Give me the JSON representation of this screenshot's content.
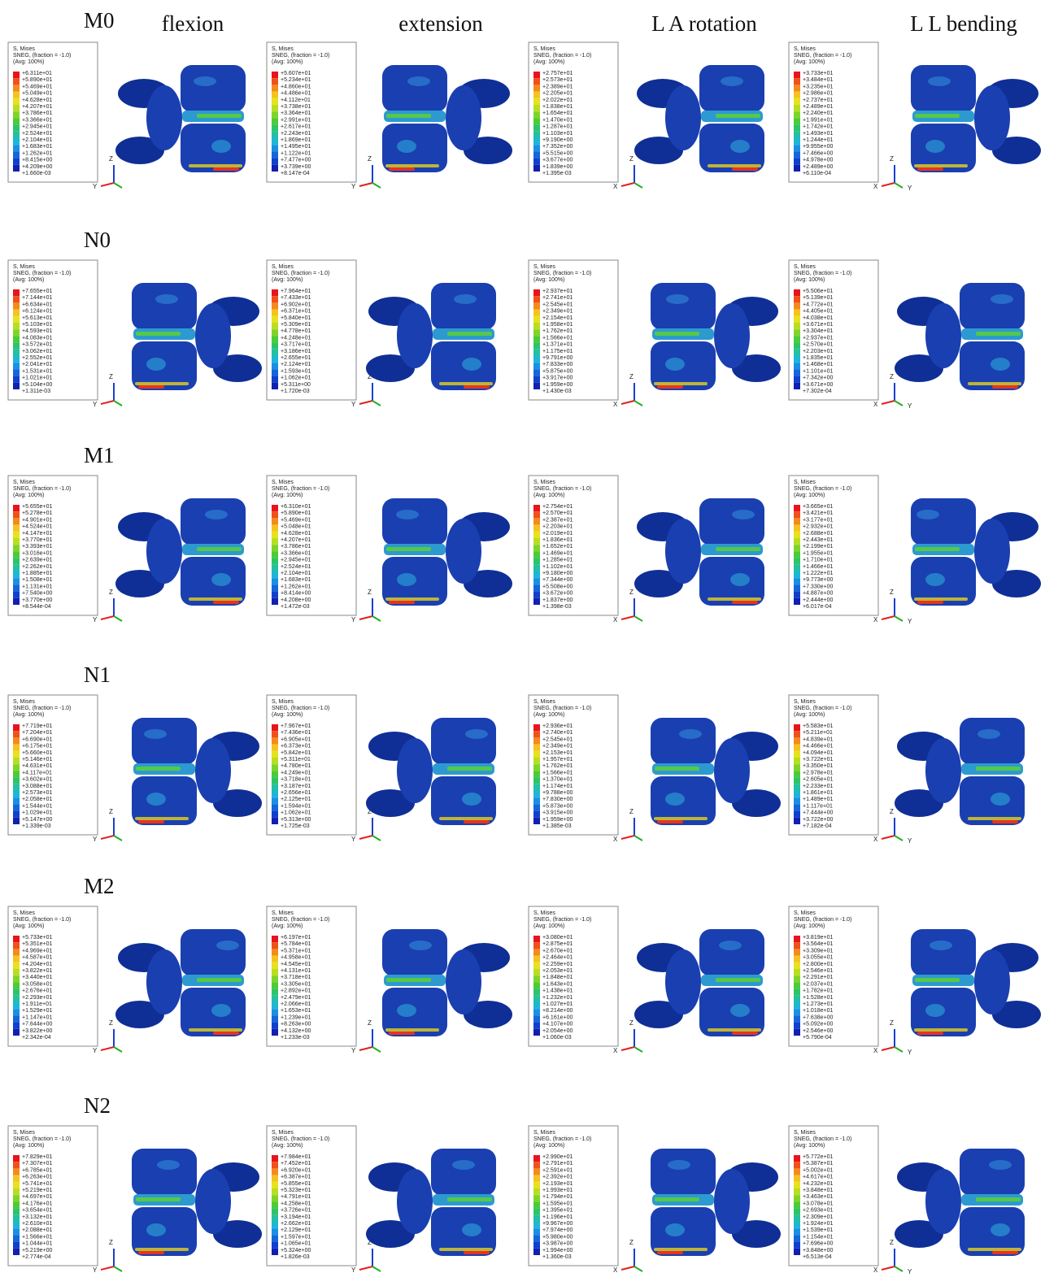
{
  "columns": [
    "flexion",
    "extension",
    "L A rotation",
    "L L bending"
  ],
  "legend_header": [
    "S, Mises",
    "SNEG, (fraction = -1.0)",
    "(Avg: 100%)"
  ],
  "triads": [
    [
      "Y",
      "Z"
    ],
    [
      "Y",
      "Z"
    ],
    [
      "X",
      "Z"
    ],
    [
      "X",
      "Z",
      "Y"
    ]
  ],
  "rows": [
    {
      "label": "M0",
      "panels": [
        [
          "+6.311e+01",
          "+5.890e+01",
          "+5.469e+01",
          "+5.049e+01",
          "+4.628e+01",
          "+4.207e+01",
          "+3.786e+01",
          "+3.366e+01",
          "+2.945e+01",
          "+2.524e+01",
          "+2.104e+01",
          "+1.683e+01",
          "+1.262e+01",
          "+8.415e+00",
          "+4.209e+00",
          "+1.660e-03"
        ],
        [
          "+5.607e+01",
          "+5.234e+01",
          "+4.860e+01",
          "+4.486e+01",
          "+4.112e+01",
          "+3.738e+01",
          "+3.364e+01",
          "+2.991e+01",
          "+2.617e+01",
          "+2.243e+01",
          "+1.869e+01",
          "+1.495e+01",
          "+1.122e+01",
          "+7.477e+00",
          "+3.739e+00",
          "+8.147e-04"
        ],
        [
          "+2.757e+01",
          "+2.573e+01",
          "+2.389e+01",
          "+2.205e+01",
          "+2.022e+01",
          "+1.838e+01",
          "+1.654e+01",
          "+1.470e+01",
          "+1.287e+01",
          "+1.103e+01",
          "+9.190e+00",
          "+7.352e+00",
          "+5.515e+00",
          "+3.677e+00",
          "+1.839e+00",
          "+1.395e-03"
        ],
        [
          "+3.733e+01",
          "+3.484e+01",
          "+3.235e+01",
          "+2.986e+01",
          "+2.737e+01",
          "+2.489e+01",
          "+2.240e+01",
          "+1.991e+01",
          "+1.742e+01",
          "+1.493e+01",
          "+1.244e+01",
          "+9.955e+00",
          "+7.466e+00",
          "+4.978e+00",
          "+2.489e+00",
          "+6.110e-04"
        ]
      ]
    },
    {
      "label": "N0",
      "panels": [
        [
          "+7.655e+01",
          "+7.144e+01",
          "+6.634e+01",
          "+6.124e+01",
          "+5.613e+01",
          "+5.103e+01",
          "+4.593e+01",
          "+4.083e+01",
          "+3.572e+01",
          "+3.062e+01",
          "+2.552e+01",
          "+2.041e+01",
          "+1.531e+01",
          "+1.021e+01",
          "+5.104e+00",
          "+1.311e-03"
        ],
        [
          "+7.964e+01",
          "+7.433e+01",
          "+6.902e+01",
          "+6.371e+01",
          "+5.840e+01",
          "+5.309e+01",
          "+4.778e+01",
          "+4.248e+01",
          "+3.717e+01",
          "+3.186e+01",
          "+2.655e+01",
          "+2.124e+01",
          "+1.593e+01",
          "+1.062e+01",
          "+5.311e+00",
          "+1.720e-03"
        ],
        [
          "+2.937e+01",
          "+2.741e+01",
          "+2.545e+01",
          "+2.349e+01",
          "+2.154e+01",
          "+1.958e+01",
          "+1.762e+01",
          "+1.566e+01",
          "+1.371e+01",
          "+1.175e+01",
          "+9.791e+00",
          "+7.833e+00",
          "+5.875e+00",
          "+3.917e+00",
          "+1.959e+00",
          "+1.430e-03"
        ],
        [
          "+5.506e+01",
          "+5.139e+01",
          "+4.772e+01",
          "+4.405e+01",
          "+4.038e+01",
          "+3.671e+01",
          "+3.304e+01",
          "+2.937e+01",
          "+2.570e+01",
          "+2.203e+01",
          "+1.835e+01",
          "+1.468e+01",
          "+1.101e+01",
          "+7.342e+00",
          "+3.671e+00",
          "+7.302e-04"
        ]
      ]
    },
    {
      "label": "M1",
      "panels": [
        [
          "+5.655e+01",
          "+5.278e+01",
          "+4.901e+01",
          "+4.524e+01",
          "+4.147e+01",
          "+3.770e+01",
          "+3.393e+01",
          "+3.016e+01",
          "+2.639e+01",
          "+2.262e+01",
          "+1.885e+01",
          "+1.508e+01",
          "+1.131e+01",
          "+7.540e+00",
          "+3.770e+00",
          "+8.544e-04"
        ],
        [
          "+6.310e+01",
          "+5.890e+01",
          "+5.469e+01",
          "+5.048e+01",
          "+4.628e+01",
          "+4.207e+01",
          "+3.786e+01",
          "+3.366e+01",
          "+2.945e+01",
          "+2.524e+01",
          "+2.104e+01",
          "+1.683e+01",
          "+1.262e+01",
          "+8.414e+00",
          "+4.208e+00",
          "+1.472e-03"
        ],
        [
          "+2.754e+01",
          "+2.570e+01",
          "+2.387e+01",
          "+2.203e+01",
          "+2.019e+01",
          "+1.836e+01",
          "+1.652e+01",
          "+1.469e+01",
          "+1.285e+01",
          "+1.102e+01",
          "+9.180e+00",
          "+7.344e+00",
          "+5.508e+00",
          "+3.672e+00",
          "+1.837e+00",
          "+1.398e-03"
        ],
        [
          "+3.665e+01",
          "+3.421e+01",
          "+3.177e+01",
          "+2.932e+01",
          "+2.688e+01",
          "+2.443e+01",
          "+2.199e+01",
          "+1.955e+01",
          "+1.710e+01",
          "+1.466e+01",
          "+1.222e+01",
          "+9.773e+00",
          "+7.330e+00",
          "+4.887e+00",
          "+2.444e+00",
          "+6.017e-04"
        ]
      ]
    },
    {
      "label": "N1",
      "panels": [
        [
          "+7.719e+01",
          "+7.204e+01",
          "+6.690e+01",
          "+6.175e+01",
          "+5.660e+01",
          "+5.146e+01",
          "+4.631e+01",
          "+4.117e+01",
          "+3.602e+01",
          "+3.088e+01",
          "+2.573e+01",
          "+2.058e+01",
          "+1.544e+01",
          "+1.029e+01",
          "+5.147e+00",
          "+1.339e-03"
        ],
        [
          "+7.967e+01",
          "+7.436e+01",
          "+6.905e+01",
          "+6.373e+01",
          "+5.842e+01",
          "+5.311e+01",
          "+4.780e+01",
          "+4.249e+01",
          "+3.718e+01",
          "+3.187e+01",
          "+2.656e+01",
          "+2.125e+01",
          "+1.594e+01",
          "+1.062e+01",
          "+5.313e+00",
          "+1.725e-03"
        ],
        [
          "+2.936e+01",
          "+2.740e+01",
          "+2.545e+01",
          "+2.349e+01",
          "+2.153e+01",
          "+1.957e+01",
          "+1.762e+01",
          "+1.566e+01",
          "+1.370e+01",
          "+1.174e+01",
          "+9.788e+00",
          "+7.830e+00",
          "+5.873e+00",
          "+3.915e+00",
          "+1.959e+00",
          "+1.385e-03"
        ],
        [
          "+5.583e+01",
          "+5.211e+01",
          "+4.839e+01",
          "+4.466e+01",
          "+4.094e+01",
          "+3.722e+01",
          "+3.350e+01",
          "+2.978e+01",
          "+2.605e+01",
          "+2.233e+01",
          "+1.861e+01",
          "+1.489e+01",
          "+1.117e+01",
          "+7.444e+00",
          "+3.722e+00",
          "+7.182e-04"
        ]
      ]
    },
    {
      "label": "M2",
      "panels": [
        [
          "+5.733e+01",
          "+5.351e+01",
          "+4.969e+01",
          "+4.587e+01",
          "+4.204e+01",
          "+3.822e+01",
          "+3.440e+01",
          "+3.058e+01",
          "+2.676e+01",
          "+2.293e+01",
          "+1.911e+01",
          "+1.529e+01",
          "+1.147e+01",
          "+7.644e+00",
          "+3.822e+00",
          "+2.342e-04"
        ],
        [
          "+6.197e+01",
          "+5.784e+01",
          "+5.371e+01",
          "+4.958e+01",
          "+4.545e+01",
          "+4.131e+01",
          "+3.718e+01",
          "+3.305e+01",
          "+2.892e+01",
          "+2.479e+01",
          "+2.066e+01",
          "+1.653e+01",
          "+1.239e+01",
          "+8.263e+00",
          "+4.132e+00",
          "+1.233e-03"
        ],
        [
          "+3.080e+01",
          "+2.875e+01",
          "+2.670e+01",
          "+2.464e+01",
          "+2.259e+01",
          "+2.053e+01",
          "+1.848e+01",
          "+1.643e+01",
          "+1.438e+01",
          "+1.232e+01",
          "+1.027e+01",
          "+8.214e+00",
          "+6.161e+00",
          "+4.107e+00",
          "+2.054e+00",
          "+1.060e-03"
        ],
        [
          "+3.819e+01",
          "+3.564e+01",
          "+3.309e+01",
          "+3.055e+01",
          "+2.800e+01",
          "+2.546e+01",
          "+2.291e+01",
          "+2.037e+01",
          "+1.782e+01",
          "+1.528e+01",
          "+1.273e+01",
          "+1.018e+01",
          "+7.638e+00",
          "+5.092e+00",
          "+2.546e+00",
          "+5.790e-04"
        ]
      ]
    },
    {
      "label": "N2",
      "panels": [
        [
          "+7.829e+01",
          "+7.307e+01",
          "+6.785e+01",
          "+6.263e+01",
          "+5.741e+01",
          "+5.219e+01",
          "+4.697e+01",
          "+4.176e+01",
          "+3.654e+01",
          "+3.132e+01",
          "+2.610e+01",
          "+2.088e+01",
          "+1.566e+01",
          "+1.044e+01",
          "+5.219e+00",
          "+2.774e-04"
        ],
        [
          "+7.984e+01",
          "+7.452e+01",
          "+6.920e+01",
          "+6.387e+01",
          "+5.855e+01",
          "+5.323e+01",
          "+4.791e+01",
          "+4.258e+01",
          "+3.726e+01",
          "+3.194e+01",
          "+2.662e+01",
          "+2.129e+01",
          "+1.597e+01",
          "+1.065e+01",
          "+5.324e+00",
          "+1.826e-03"
        ],
        [
          "+2.990e+01",
          "+2.791e+01",
          "+2.591e+01",
          "+2.392e+01",
          "+2.193e+01",
          "+1.993e+01",
          "+1.794e+01",
          "+1.595e+01",
          "+1.395e+01",
          "+1.196e+01",
          "+9.967e+00",
          "+7.974e+00",
          "+5.980e+00",
          "+3.987e+00",
          "+1.994e+00",
          "+1.360e-03"
        ],
        [
          "+5.772e+01",
          "+5.387e+01",
          "+5.002e+01",
          "+4.617e+01",
          "+4.232e+01",
          "+3.848e+01",
          "+3.463e+01",
          "+3.078e+01",
          "+2.693e+01",
          "+2.309e+01",
          "+1.924e+01",
          "+1.539e+01",
          "+1.154e+01",
          "+7.696e+00",
          "+3.848e+00",
          "+6.513e-04"
        ]
      ]
    }
  ]
}
